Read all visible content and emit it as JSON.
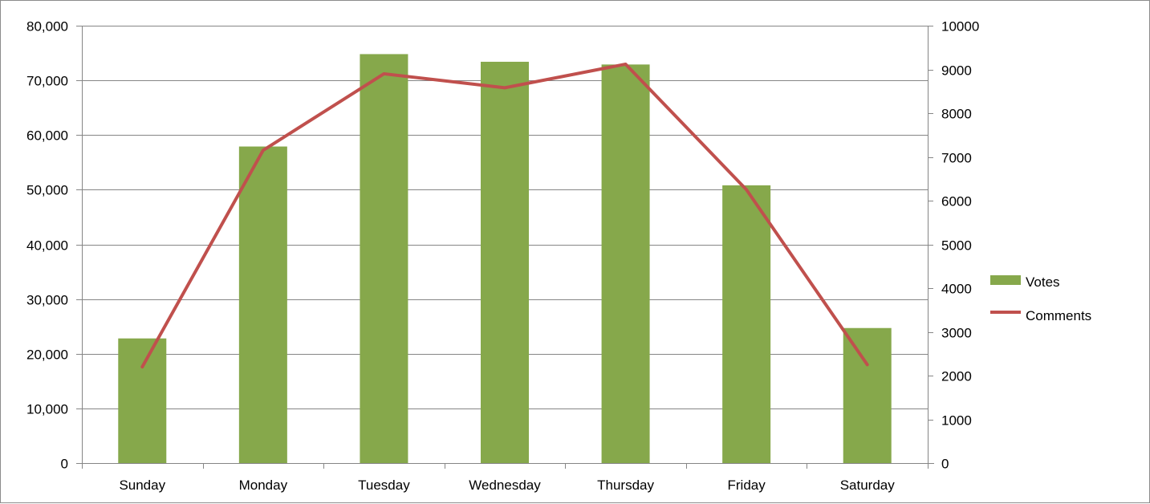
{
  "chart_data": {
    "type": "bar",
    "categories": [
      "Sunday",
      "Monday",
      "Tuesday",
      "Wednesday",
      "Thursday",
      "Friday",
      "Saturday"
    ],
    "series": [
      {
        "name": "Votes",
        "type": "bar",
        "axis": "left",
        "color": "#86a84b",
        "values": [
          22800,
          57900,
          74800,
          73400,
          72900,
          50800,
          24700
        ]
      },
      {
        "name": "Comments",
        "type": "line",
        "axis": "right",
        "color": "#c0504d",
        "values": [
          2200,
          7150,
          8900,
          8580,
          9120,
          6250,
          2250
        ]
      }
    ],
    "y_left": {
      "lim": [
        0,
        80000
      ],
      "ticks": [
        0,
        10000,
        20000,
        30000,
        40000,
        50000,
        60000,
        70000,
        80000
      ],
      "tick_labels": [
        "0",
        "10,000",
        "20,000",
        "30,000",
        "40,000",
        "50,000",
        "60,000",
        "70,000",
        "80,000"
      ]
    },
    "y_right": {
      "lim": [
        0,
        10000
      ],
      "ticks": [
        0,
        1000,
        2000,
        3000,
        4000,
        5000,
        6000,
        7000,
        8000,
        9000,
        10000
      ],
      "tick_labels": [
        "0",
        "1000",
        "2000",
        "3000",
        "4000",
        "5000",
        "6000",
        "7000",
        "8000",
        "9000",
        "10000"
      ]
    },
    "grid": true,
    "legend_position": "right",
    "title": "",
    "xlabel": "",
    "ylabel": ""
  }
}
